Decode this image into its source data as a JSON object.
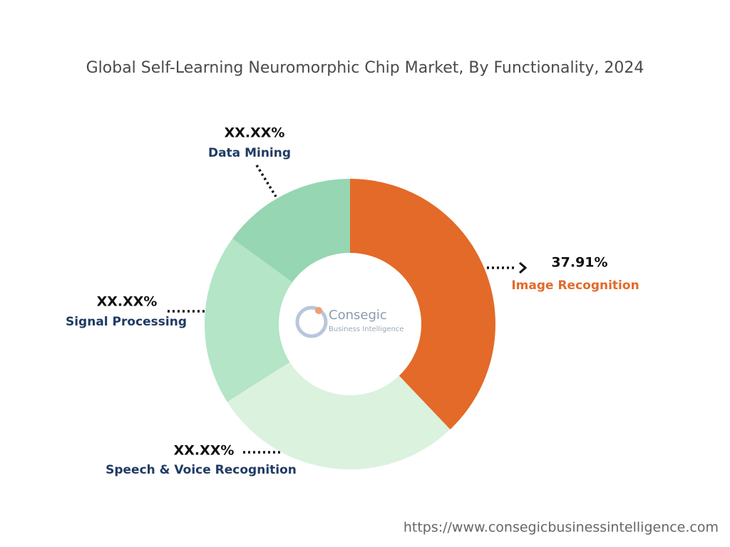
{
  "chart_data": {
    "type": "donut",
    "title": "Global Self-Learning Neuromorphic Chip Market, By Functionality, 2024",
    "categories": [
      "Image Recognition",
      "Speech & Voice Recognition",
      "Signal Processing",
      "Data Mining"
    ],
    "values": [
      37.91,
      28.1,
      19.0,
      15.0
    ],
    "value_labels": [
      "37.91%",
      "XX.XX%",
      "XX.XX%",
      "XX.XX%"
    ],
    "colors": [
      "#e36a28",
      "#daf2de",
      "#b3e5c6",
      "#96d6b2"
    ],
    "logo": {
      "name": "Consegic",
      "tagline": "Business Intelligence"
    },
    "source": "https://www.consegicbusinessintelligence.com"
  }
}
